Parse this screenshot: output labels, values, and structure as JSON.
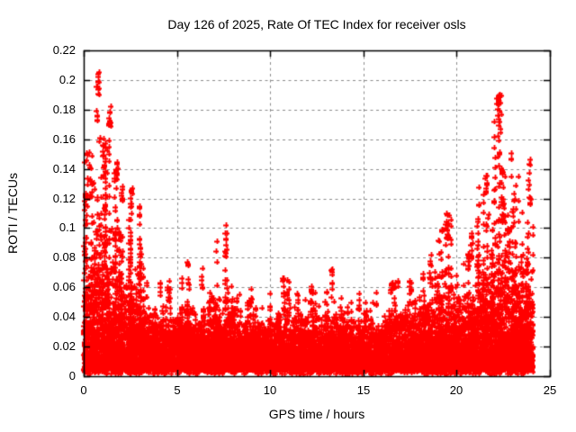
{
  "chart_data": {
    "type": "scatter",
    "title": "Day 126 of 2025, Rate Of TEC Index for receiver osls",
    "xlabel": "GPS time / hours",
    "ylabel": "ROTI / TECUs",
    "marker": "plus",
    "marker_size_px": 7,
    "point_color": "#ff0000",
    "grid_color": "#8c8c8c",
    "grid_style": "dashed",
    "axis_color": "#000000",
    "background_color": "#ffffff",
    "xlim": [
      0,
      25
    ],
    "ylim": [
      0,
      0.22
    ],
    "x_tick_values": [
      0,
      5,
      10,
      15,
      20,
      25
    ],
    "x_tick_labels": [
      "0",
      "5",
      "10",
      "15",
      "20",
      "25"
    ],
    "y_tick_values": [
      0,
      0.02,
      0.04,
      0.06,
      0.08,
      0.1,
      0.12,
      0.14,
      0.16,
      0.18,
      0.2,
      0.22
    ],
    "y_tick_labels": [
      "0",
      "0.02",
      "0.04",
      "0.06",
      "0.08",
      "0.1",
      "0.12",
      "0.14",
      "0.16",
      "0.18",
      "0.2",
      "0.22"
    ],
    "x_data_range": [
      0,
      24.1
    ],
    "seed": 42,
    "noise_floor": 0.004,
    "low_stray_fraction": 0.06,
    "burst_fraction": 0.3,
    "envelope_segments": [
      [
        0.0,
        0.5,
        0.026,
        0.165,
        620
      ],
      [
        0.5,
        1.0,
        0.028,
        0.175,
        640
      ],
      [
        1.0,
        1.5,
        0.027,
        0.185,
        640
      ],
      [
        1.5,
        2.0,
        0.022,
        0.148,
        620
      ],
      [
        2.0,
        2.5,
        0.02,
        0.125,
        600
      ],
      [
        2.5,
        3.0,
        0.019,
        0.132,
        590
      ],
      [
        3.0,
        4.0,
        0.014,
        0.082,
        560
      ],
      [
        4.0,
        5.0,
        0.012,
        0.067,
        550
      ],
      [
        5.0,
        6.0,
        0.013,
        0.08,
        550
      ],
      [
        6.0,
        7.0,
        0.012,
        0.066,
        550
      ],
      [
        7.0,
        8.0,
        0.013,
        0.095,
        550
      ],
      [
        8.0,
        10.0,
        0.01,
        0.062,
        540
      ],
      [
        10.0,
        11.0,
        0.011,
        0.076,
        540
      ],
      [
        11.0,
        13.0,
        0.01,
        0.066,
        540
      ],
      [
        13.0,
        14.0,
        0.011,
        0.076,
        540
      ],
      [
        14.0,
        16.0,
        0.01,
        0.06,
        540
      ],
      [
        16.0,
        18.0,
        0.011,
        0.072,
        545
      ],
      [
        18.0,
        19.0,
        0.013,
        0.086,
        550
      ],
      [
        19.0,
        20.0,
        0.015,
        0.112,
        560
      ],
      [
        20.0,
        21.0,
        0.015,
        0.102,
        560
      ],
      [
        21.0,
        22.0,
        0.018,
        0.15,
        580
      ],
      [
        22.0,
        22.5,
        0.022,
        0.19,
        600
      ],
      [
        22.5,
        23.0,
        0.02,
        0.162,
        590
      ],
      [
        23.0,
        23.5,
        0.019,
        0.142,
        580
      ],
      [
        23.5,
        24.1,
        0.019,
        0.152,
        580
      ]
    ],
    "spike_clusters": [
      [
        0.35,
        0.15,
        0.12,
        0.16,
        10
      ],
      [
        0.72,
        0.05,
        0.172,
        0.184,
        6
      ],
      [
        0.78,
        0.1,
        0.19,
        0.206,
        13
      ],
      [
        1.05,
        0.25,
        0.134,
        0.163,
        18
      ],
      [
        1.38,
        0.1,
        0.166,
        0.183,
        15
      ],
      [
        1.75,
        0.1,
        0.12,
        0.146,
        10
      ],
      [
        2.05,
        0.06,
        0.116,
        0.13,
        8
      ],
      [
        2.55,
        0.08,
        0.11,
        0.13,
        10
      ],
      [
        3.05,
        0.06,
        0.072,
        0.09,
        7
      ],
      [
        4.55,
        0.07,
        0.05,
        0.066,
        8
      ],
      [
        5.6,
        0.07,
        0.058,
        0.078,
        8
      ],
      [
        6.35,
        0.06,
        0.058,
        0.075,
        7
      ],
      [
        7.62,
        0.06,
        0.07,
        0.106,
        13
      ],
      [
        9.0,
        0.06,
        0.046,
        0.06,
        6
      ],
      [
        10.7,
        0.05,
        0.052,
        0.074,
        8
      ],
      [
        12.2,
        0.05,
        0.048,
        0.064,
        7
      ],
      [
        13.3,
        0.05,
        0.053,
        0.074,
        8
      ],
      [
        16.5,
        0.06,
        0.048,
        0.064,
        7
      ],
      [
        18.6,
        0.08,
        0.06,
        0.084,
        9
      ],
      [
        19.5,
        0.12,
        0.084,
        0.11,
        15
      ],
      [
        20.8,
        0.08,
        0.078,
        0.1,
        10
      ],
      [
        21.6,
        0.12,
        0.098,
        0.136,
        13
      ],
      [
        22.28,
        0.14,
        0.14,
        0.192,
        28
      ],
      [
        22.45,
        0.08,
        0.1,
        0.142,
        14
      ],
      [
        23.05,
        0.06,
        0.098,
        0.125,
        8
      ],
      [
        23.92,
        0.07,
        0.116,
        0.152,
        11
      ]
    ]
  }
}
